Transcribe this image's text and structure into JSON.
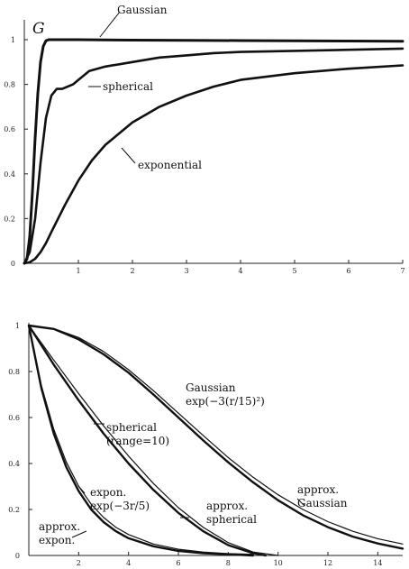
{
  "chart_data": [
    {
      "type": "line",
      "ylabel": "G",
      "xlabel": "",
      "xlim": [
        0,
        7
      ],
      "ylim": [
        0,
        1.05
      ],
      "x_ticks": [
        1,
        2,
        3,
        4,
        5,
        6,
        7
      ],
      "y_ticks": [
        0,
        0.2,
        0.4,
        0.6,
        0.8,
        1
      ],
      "x_tick_labels": [
        "1",
        "2",
        "3",
        "4",
        "5",
        "6",
        "7"
      ],
      "y_tick_labels": [
        "0",
        "0.2",
        "0.4",
        "0.6",
        "0.8",
        "1"
      ],
      "grid": false,
      "series": [
        {
          "name": "Gaussian",
          "x": [
            0,
            0.05,
            0.1,
            0.15,
            0.2,
            0.25,
            0.3,
            0.35,
            0.4,
            0.45,
            0.5,
            0.6,
            1,
            2,
            3,
            4,
            5,
            6,
            7
          ],
          "y": [
            0,
            0.02,
            0.12,
            0.32,
            0.56,
            0.76,
            0.9,
            0.97,
            0.995,
            1.0,
            1.0,
            1.0,
            1.0,
            0.998,
            0.997,
            0.996,
            0.995,
            0.994,
            0.993
          ]
        },
        {
          "name": "spherical",
          "x": [
            0,
            0.1,
            0.2,
            0.3,
            0.4,
            0.5,
            0.6,
            0.7,
            0.8,
            0.9,
            1.0,
            1.2,
            1.5,
            2,
            2.5,
            3,
            3.5,
            4,
            5,
            6,
            7
          ],
          "y": [
            0,
            0.05,
            0.2,
            0.45,
            0.65,
            0.75,
            0.78,
            0.78,
            0.79,
            0.8,
            0.82,
            0.86,
            0.88,
            0.9,
            0.92,
            0.93,
            0.94,
            0.945,
            0.95,
            0.955,
            0.96
          ]
        },
        {
          "name": "exponential",
          "x": [
            0,
            0.1,
            0.2,
            0.3,
            0.4,
            0.5,
            0.75,
            1,
            1.25,
            1.5,
            2,
            2.5,
            3,
            3.5,
            4,
            5,
            6,
            7
          ],
          "y": [
            0,
            0.005,
            0.02,
            0.05,
            0.09,
            0.14,
            0.26,
            0.37,
            0.46,
            0.53,
            0.63,
            0.7,
            0.75,
            0.79,
            0.82,
            0.85,
            0.87,
            0.885
          ]
        }
      ],
      "annotations": [
        {
          "text": "Gaussian",
          "series": "Gaussian"
        },
        {
          "text": "spherical",
          "series": "spherical"
        },
        {
          "text": "exponential",
          "series": "exponential"
        }
      ]
    },
    {
      "type": "line",
      "xlabel": "",
      "ylabel": "",
      "xlim": [
        0,
        15
      ],
      "ylim": [
        0,
        1
      ],
      "x_ticks": [
        2,
        4,
        6,
        8,
        10,
        12,
        14
      ],
      "y_ticks": [
        0,
        0.2,
        0.4,
        0.6,
        0.8,
        1
      ],
      "x_tick_labels": [
        "2",
        "4",
        "6",
        "8",
        "10",
        "12",
        "14"
      ],
      "y_tick_labels": [
        "0",
        "0.2",
        "0.4",
        "0.6",
        "0.8",
        "1"
      ],
      "grid": false,
      "series": [
        {
          "name": "Gaussian exp(−3(r/15)²)",
          "x": [
            0,
            1,
            2,
            3,
            4,
            5,
            6,
            7,
            8,
            9,
            10,
            11,
            12,
            13,
            14,
            15
          ],
          "y": [
            1.0,
            0.987,
            0.948,
            0.887,
            0.808,
            0.717,
            0.619,
            0.521,
            0.426,
            0.34,
            0.264,
            0.2,
            0.147,
            0.105,
            0.073,
            0.05
          ]
        },
        {
          "name": "approx. Gaussian",
          "x": [
            0,
            1,
            2,
            3,
            4,
            5,
            6,
            7,
            8,
            9,
            10,
            11,
            12,
            13,
            14,
            15
          ],
          "y": [
            1.0,
            0.985,
            0.94,
            0.875,
            0.795,
            0.7,
            0.6,
            0.5,
            0.405,
            0.318,
            0.24,
            0.175,
            0.123,
            0.082,
            0.052,
            0.03
          ]
        },
        {
          "name": "spherical (range=10)",
          "x": [
            0,
            1,
            2,
            3,
            4,
            5,
            6,
            7,
            8,
            9,
            10
          ],
          "y": [
            1.0,
            0.85,
            0.704,
            0.564,
            0.432,
            0.313,
            0.208,
            0.122,
            0.056,
            0.015,
            0.0
          ]
        },
        {
          "name": "approx. spherical",
          "x": [
            0,
            1,
            2,
            3,
            4,
            5,
            6,
            7,
            8,
            9,
            9.5
          ],
          "y": [
            1.0,
            0.83,
            0.675,
            0.53,
            0.4,
            0.285,
            0.185,
            0.105,
            0.045,
            0.01,
            0.0
          ]
        },
        {
          "name": "expon. exp(−3r/5)",
          "x": [
            0,
            0.5,
            1,
            1.5,
            2,
            2.5,
            3,
            3.5,
            4,
            5,
            6,
            7,
            8,
            9
          ],
          "y": [
            1.0,
            0.741,
            0.549,
            0.407,
            0.301,
            0.223,
            0.165,
            0.122,
            0.091,
            0.05,
            0.027,
            0.015,
            0.008,
            0.005
          ]
        },
        {
          "name": "approx. expon.",
          "x": [
            0,
            0.5,
            1,
            1.5,
            2,
            2.5,
            3,
            3.5,
            4,
            5,
            6,
            7,
            8,
            9
          ],
          "y": [
            1.0,
            0.73,
            0.53,
            0.385,
            0.28,
            0.2,
            0.145,
            0.105,
            0.075,
            0.04,
            0.02,
            0.01,
            0.005,
            0.0
          ]
        }
      ],
      "annotations": [
        {
          "lines": [
            "Gaussian",
            "exp(−3(r/15)²)"
          ]
        },
        {
          "lines": [
            "spherical",
            "(range=10)"
          ]
        },
        {
          "lines": [
            "expon.",
            "exp(−3r/5)"
          ]
        },
        {
          "lines": [
            "approx.",
            "Gaussian"
          ]
        },
        {
          "lines": [
            "approx.",
            "spherical"
          ]
        },
        {
          "lines": [
            "approx.",
            "expon."
          ]
        }
      ]
    }
  ]
}
